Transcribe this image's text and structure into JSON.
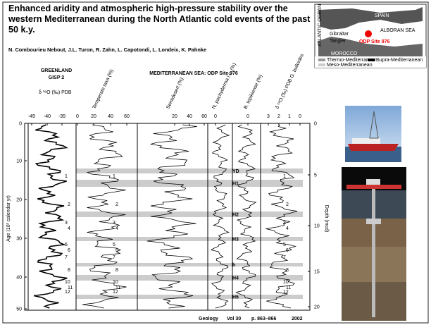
{
  "title": "Enhanced aridity and atmospheric high-pressure stability over the western Mediterranean during the North Atlantic cold events of the past 50 k.y.",
  "authors": "N. Combourieu Nebout, J.L. Turon, R. Zahn, L. Capotondi, L. Londeix, K. Pahnke",
  "citation": {
    "journal": "Geology",
    "volume": "Vol 30",
    "pages": "p. 863–866",
    "year": "2002"
  },
  "figure": {
    "left_header": [
      "GREENLAND",
      "GISP 2"
    ],
    "right_header": "MEDITERRANEAN SEA: ODP Site 976",
    "gisp_axis": "δ ¹⁸O (‰) PDB",
    "columns": [
      "Temperate taxa (%)",
      "Semidesert (%)",
      "N. pachyderma l.c. (%)",
      "B. tepikiense (%)",
      "δ ¹⁸O (‰) PDB G. bulloides"
    ],
    "top_ticks": [
      [
        "-45",
        "-40",
        "-35"
      ],
      [
        "0",
        "20",
        "40",
        "60"
      ],
      [
        "20",
        "40",
        "60"
      ],
      [
        "0"
      ],
      [
        "0"
      ],
      [
        "3",
        "2",
        "1",
        "0"
      ]
    ],
    "age_label": "Age (10³ calendar yr)",
    "age_ticks": [
      "0",
      "10",
      "20",
      "30",
      "40",
      "50"
    ],
    "depth_label": "Depth (mcd)",
    "depth_ticks": [
      "0",
      "5",
      "10",
      "15",
      "20"
    ],
    "events": [
      "YD",
      "H1",
      "H2",
      "H3",
      "h",
      "H4",
      "H5"
    ],
    "interstadials": [
      "1",
      "2",
      "3",
      "4",
      "5",
      "6",
      "7",
      "8",
      "10",
      "11",
      "12"
    ]
  },
  "map": {
    "labels": [
      "SPAIN",
      "ALBORAN SEA",
      "MOROCCO",
      "ATLANTIC OCEAN",
      "Gibraltar",
      "Tangier"
    ],
    "site": "ODP Site 976",
    "legend": [
      "Thermo-Mediterranean",
      "Supra-Mediterranean",
      "Meso-Mediterranean"
    ]
  }
}
